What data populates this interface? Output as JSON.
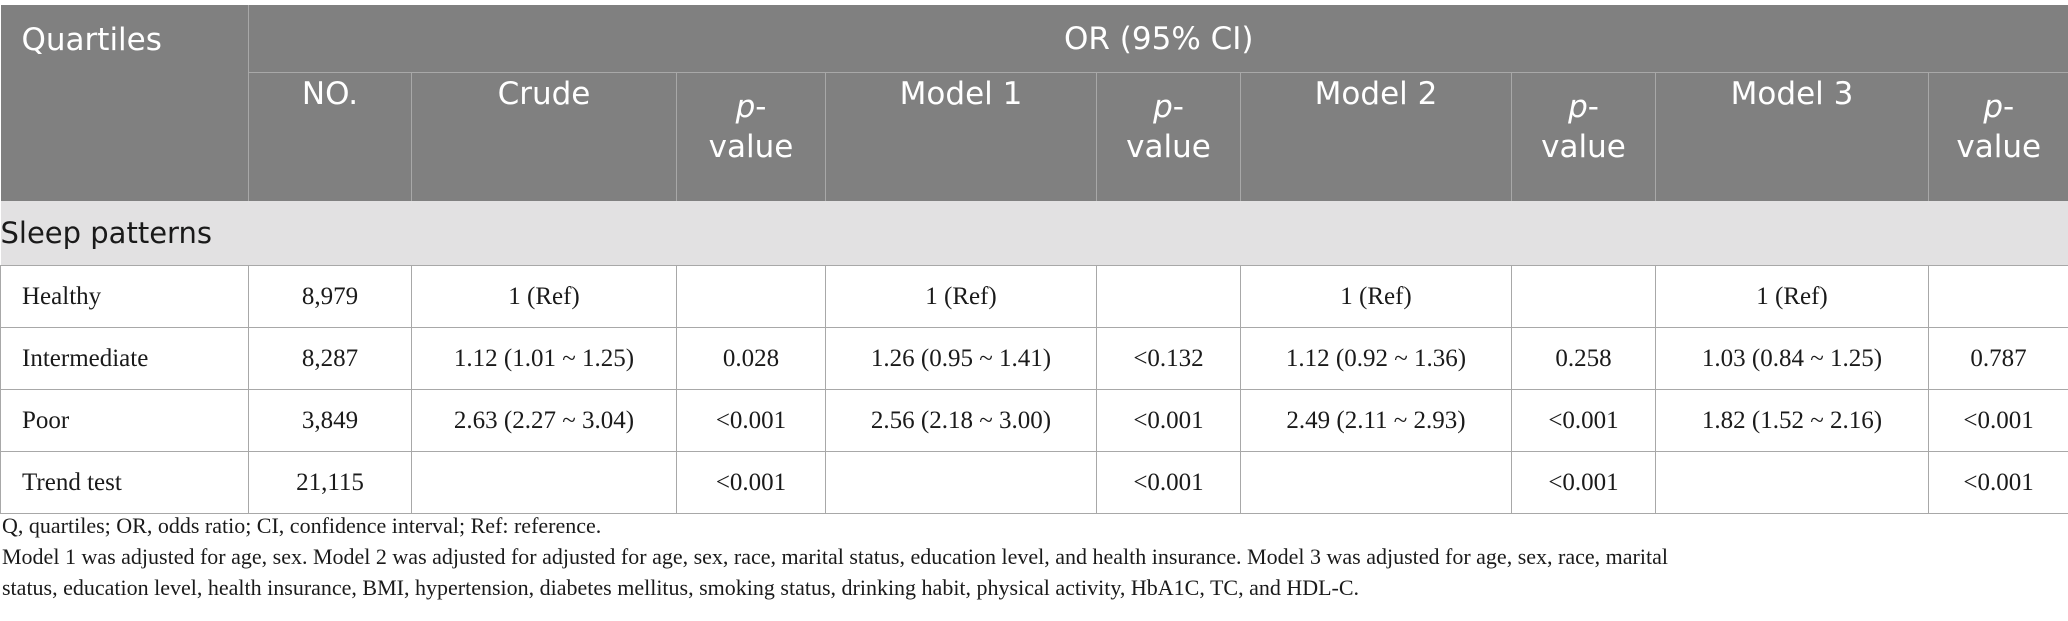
{
  "header": {
    "quartiles_label": "Quartiles",
    "group_label": "OR (95% CI)",
    "columns": [
      {
        "label": "NO."
      },
      {
        "label": "Crude"
      },
      {
        "label_italic": "p",
        "label_suffix": "-",
        "label_line2": "value"
      },
      {
        "label": "Model 1"
      },
      {
        "label_italic": "p",
        "label_suffix": "-",
        "label_line2": "value"
      },
      {
        "label": "Model 2"
      },
      {
        "label_italic": "p",
        "label_suffix": "-",
        "label_line2": "value"
      },
      {
        "label": "Model 3"
      },
      {
        "label_italic": "p",
        "label_suffix": "-",
        "label_line2": "value"
      }
    ]
  },
  "section": {
    "title": "Sleep patterns"
  },
  "rows": [
    {
      "name": "Healthy",
      "no": "8,979",
      "crude": "1 (Ref)",
      "p_crude": "",
      "m1": "1 (Ref)",
      "p_m1": "",
      "m2": "1 (Ref)",
      "p_m2": "",
      "m3": "1 (Ref)",
      "p_m3": ""
    },
    {
      "name": "Intermediate",
      "no": "8,287",
      "crude": "1.12 (1.01 ~ 1.25)",
      "p_crude": "0.028",
      "m1": "1.26 (0.95 ~ 1.41)",
      "p_m1": "<0.132",
      "m2": "1.12 (0.92 ~ 1.36)",
      "p_m2": "0.258",
      "m3": "1.03 (0.84 ~ 1.25)",
      "p_m3": "0.787"
    },
    {
      "name": "Poor",
      "no": "3,849",
      "crude": "2.63 (2.27 ~ 3.04)",
      "p_crude": "<0.001",
      "m1": "2.56 (2.18 ~ 3.00)",
      "p_m1": "<0.001",
      "m2": "2.49 (2.11 ~ 2.93)",
      "p_m2": "<0.001",
      "m3": "1.82 (1.52 ~ 2.16)",
      "p_m3": "<0.001"
    },
    {
      "name": "Trend test",
      "no": "21,115",
      "crude": "",
      "p_crude": "<0.001",
      "m1": "",
      "p_m1": "<0.001",
      "m2": "",
      "p_m2": "<0.001",
      "m3": "",
      "p_m3": "<0.001"
    }
  ],
  "notes": {
    "abbreviations": "Q, quartiles; OR, odds ratio; CI, confidence interval; Ref: reference.",
    "models_line1": "Model 1 was adjusted for age, sex. Model 2 was adjusted for adjusted for age, sex, race, marital status, education level, and health insurance. Model 3 was adjusted for age, sex, race, marital",
    "models_line2": "status, education level, health insurance, BMI, hypertension, diabetes mellitus, smoking status, drinking habit, physical activity, HbA1C, TC, and HDL-C."
  },
  "colors": {
    "header_bg": "#808080",
    "header_text": "#ffffff",
    "section_bg": "#e2e1e2",
    "grid": "#a8a8a8"
  }
}
